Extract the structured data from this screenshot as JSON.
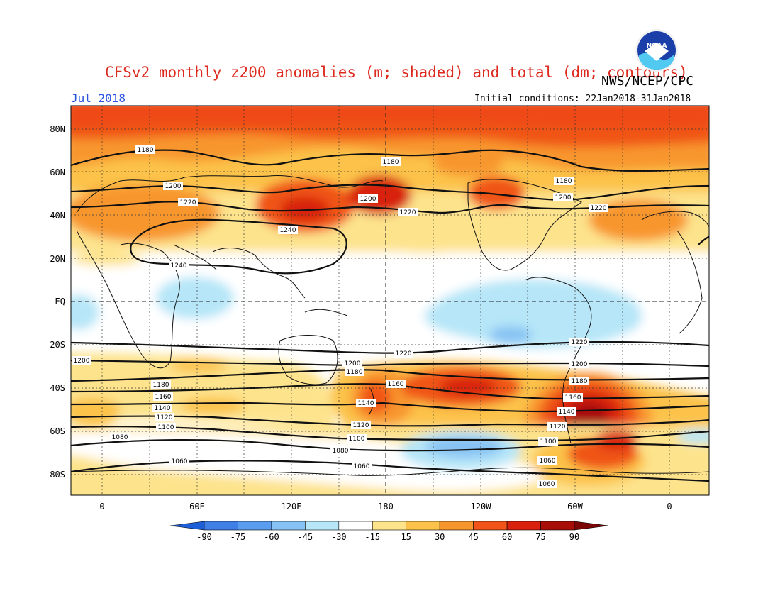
{
  "header": {
    "title": "CFSv2 monthly z200 anomalies (m; shaded) and total (dm; contours)",
    "agency": "NWS/NCEP/CPC",
    "month": "Jul 2018",
    "initial_conditions": "Initial conditions: 22Jan2018-31Jan2018",
    "logo_text": "NOAA"
  },
  "axes": {
    "lat_labels": [
      "80N",
      "60N",
      "40N",
      "20N",
      "EQ",
      "20S",
      "40S",
      "60S",
      "80S"
    ],
    "lon_labels": [
      "0",
      "60E",
      "120E",
      "180",
      "120W",
      "60W",
      "0"
    ]
  },
  "contour_labels": [
    {
      "text": "1180"
    },
    {
      "text": "1180"
    },
    {
      "text": "1180"
    },
    {
      "text": "1200"
    },
    {
      "text": "1200"
    },
    {
      "text": "1200"
    },
    {
      "text": "1220"
    },
    {
      "text": "1220"
    },
    {
      "text": "1220"
    },
    {
      "text": "1240"
    },
    {
      "text": "1240"
    },
    {
      "text": "1220"
    },
    {
      "text": "1220"
    },
    {
      "text": "1200"
    },
    {
      "text": "1200"
    },
    {
      "text": "1200"
    },
    {
      "text": "1180"
    },
    {
      "text": "1180"
    },
    {
      "text": "1180"
    },
    {
      "text": "1160"
    },
    {
      "text": "1160"
    },
    {
      "text": "1160"
    },
    {
      "text": "1140"
    },
    {
      "text": "1140"
    },
    {
      "text": "1140"
    },
    {
      "text": "1120"
    },
    {
      "text": "1120"
    },
    {
      "text": "1120"
    },
    {
      "text": "1100"
    },
    {
      "text": "1100"
    },
    {
      "text": "1100"
    },
    {
      "text": "1080"
    },
    {
      "text": "1080"
    },
    {
      "text": "1060"
    },
    {
      "text": "1060"
    },
    {
      "text": "1060"
    },
    {
      "text": "1060"
    }
  ],
  "colorbar": {
    "ticks": [
      "-90",
      "-75",
      "-60",
      "-45",
      "-30",
      "-15",
      "15",
      "30",
      "45",
      "60",
      "75",
      "90"
    ],
    "colors": [
      "#1c5fd8",
      "#3f7fe6",
      "#5a9cee",
      "#86c2f3",
      "#b6e6f8",
      "#ffffff",
      "#fde38c",
      "#fcc24a",
      "#f8962e",
      "#f05418",
      "#d8200c",
      "#a80e08",
      "#7a0606"
    ]
  }
}
